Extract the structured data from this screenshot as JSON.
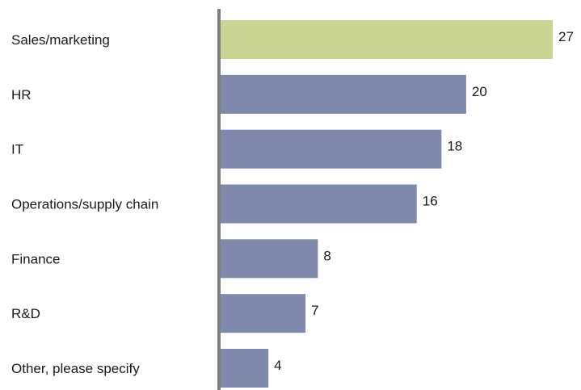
{
  "chart_data": {
    "type": "bar",
    "orientation": "horizontal",
    "categories": [
      "Sales/marketing",
      "HR",
      "IT",
      "Operations/supply chain",
      "Finance",
      "R&D",
      "Other, please specify"
    ],
    "values": [
      27,
      20,
      18,
      16,
      8,
      7,
      4
    ],
    "title": "",
    "xlabel": "",
    "ylabel": "",
    "xlim": [
      0,
      27
    ],
    "grid": false,
    "legend": "none",
    "data_labels": true,
    "colors": {
      "highlight": "#cad593",
      "default": "#8089ab",
      "axis": "#7f7f7f"
    },
    "highlight_index": 0
  }
}
